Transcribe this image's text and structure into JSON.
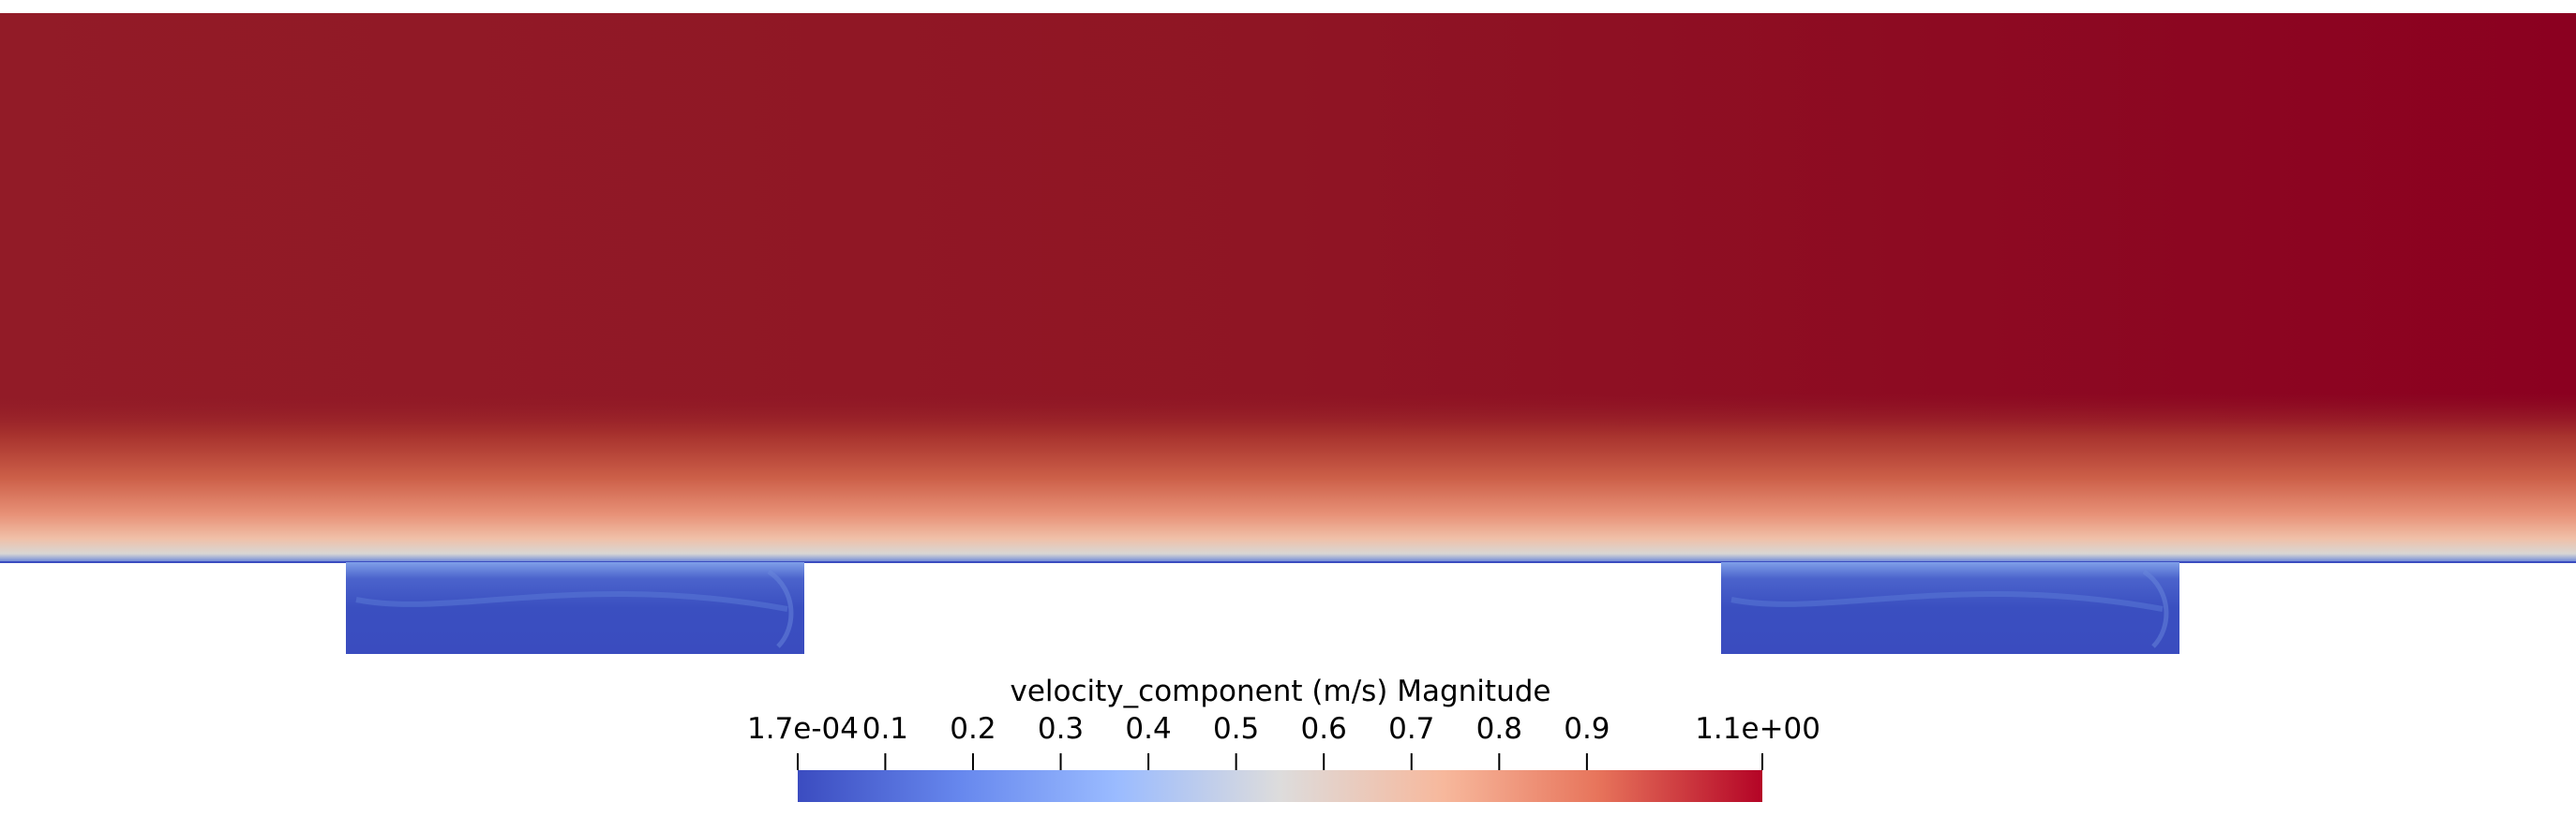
{
  "colorbar": {
    "title": "velocity_component (m/s) Magnitude",
    "range": [
      0.00017,
      1.1
    ],
    "min_label": "1.7e-04",
    "max_label": "1.1e+00",
    "ticks": [
      {
        "value": 0.1,
        "label": "0.1"
      },
      {
        "value": 0.2,
        "label": "0.2"
      },
      {
        "value": 0.3,
        "label": "0.3"
      },
      {
        "value": 0.4,
        "label": "0.4"
      },
      {
        "value": 0.5,
        "label": "0.5"
      },
      {
        "value": 0.6,
        "label": "0.6"
      },
      {
        "value": 0.7,
        "label": "0.7"
      },
      {
        "value": 0.8,
        "label": "0.8"
      },
      {
        "value": 0.9,
        "label": "0.9"
      }
    ],
    "colormap": [
      "#3b4cc0",
      "#7396f5",
      "#b0cbfc",
      "#dddcdc",
      "#f6bfa6",
      "#ea7b60",
      "#b40426"
    ]
  },
  "field": {
    "free_stream_color_left": "#921b27",
    "free_stream_color_right": "#8c0020",
    "cavity_color": "#3b4cc0",
    "wall_color": "#3b4cc0"
  }
}
